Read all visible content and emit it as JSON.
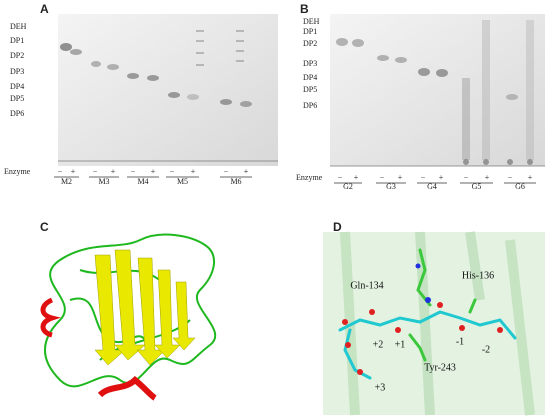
{
  "panels": [
    {
      "label": "A",
      "ladder": [
        "DEH",
        "DP1",
        "DP2",
        "DP3",
        "DP4",
        "DP5",
        "DP6"
      ],
      "row_label": "Enzyme",
      "signs": [
        "−",
        "+"
      ],
      "groups": [
        "M2",
        "M3",
        "M4",
        "M5",
        "M6"
      ]
    },
    {
      "label": "B",
      "ladder": [
        "DEH",
        "DP1",
        "DP2",
        "DP3",
        "DP4",
        "DP5",
        "DP6"
      ],
      "row_label": "Enzyme",
      "signs": [
        "−",
        "+"
      ],
      "groups": [
        "G2",
        "G3",
        "G4",
        "G5",
        "G6"
      ]
    },
    {
      "label": "C"
    },
    {
      "label": "D",
      "residues": [
        "His-136",
        "Gln-134",
        "Tyr-243"
      ],
      "subsites": [
        "-1",
        "-2",
        "+1",
        "+2",
        "+3"
      ]
    }
  ]
}
